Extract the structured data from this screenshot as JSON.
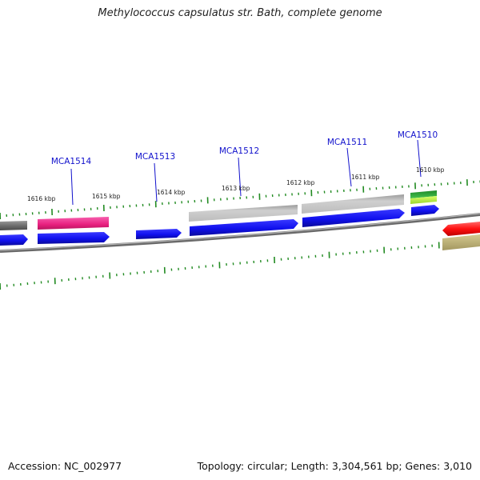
{
  "title": "Methylococcus capsulatus str. Bath, complete genome",
  "footer": {
    "accession": "Accession: NC_002977",
    "summary": "Topology: circular; Length: 3,304,561 bp; Genes: 3,010"
  },
  "colors": {
    "backbone": "#7a7a7a",
    "tick": "#228b22",
    "label": "#1111cc",
    "cds": "#1a1aff",
    "gene_pink": "#ee2a8c",
    "gene_gray": "#bdbdbd",
    "gene_dark": "#6e6e6e",
    "gene_green": "#3cb043",
    "gene_lime": "#b6f23d",
    "gene_red": "#ff1a1a",
    "gene_olive": "#b5a96a"
  },
  "position_labels": [
    {
      "name": "1616-kbp",
      "text": "1616 kbp"
    },
    {
      "name": "1615-kbp",
      "text": "1615 kbp"
    },
    {
      "name": "1614-kbp",
      "text": "1614 kbp"
    },
    {
      "name": "1613-kbp",
      "text": "1613 kbp"
    },
    {
      "name": "1612-kbp",
      "text": "1612 kbp"
    },
    {
      "name": "1611-kbp",
      "text": "1611 kbp"
    },
    {
      "name": "1610-kbp",
      "text": "1610 kbp"
    }
  ],
  "gene_labels": [
    {
      "name": "MCA1514",
      "text": "MCA1514"
    },
    {
      "name": "MCA1513",
      "text": "MCA1513"
    },
    {
      "name": "MCA1512",
      "text": "MCA1512"
    },
    {
      "name": "MCA1511",
      "text": "MCA1511"
    },
    {
      "name": "MCA1510",
      "text": "MCA1510"
    }
  ]
}
